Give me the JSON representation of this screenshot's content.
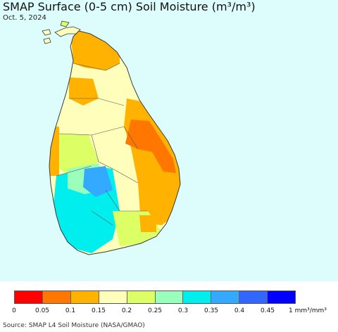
{
  "title": "SMAP Surface (0-5 cm) Soil Moisture (m³/m³)",
  "date": "Oct. 5, 2024",
  "source": "Source: SMAP L4 Soil Moisture (NASA/GMAO)",
  "colors": {
    "water": "#ddfcfc",
    "border": "#3a3a3a"
  },
  "legend": {
    "ticks": [
      "0",
      "0.05",
      "0.1",
      "0.15",
      "0.2",
      "0.25",
      "0.3",
      "0.35",
      "0.4",
      "0.45",
      "1 mm³/mm³"
    ],
    "colors": [
      "#ff0000",
      "#ff7700",
      "#ffb300",
      "#ffffbb",
      "#ddff66",
      "#99ffbb",
      "#00eeee",
      "#33aaff",
      "#3366ff",
      "#0000ff"
    ]
  }
}
